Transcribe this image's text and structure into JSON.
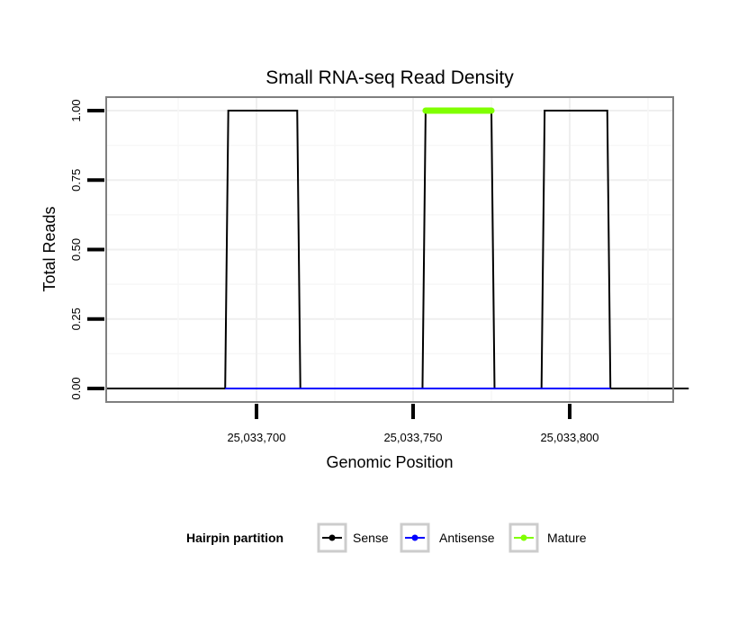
{
  "chart_data": {
    "type": "line",
    "title": "Small RNA-seq Read Density",
    "xlabel": "Genomic Position",
    "ylabel": "Total Reads",
    "xlim": [
      25033660,
      25033841
    ],
    "ylim": [
      -0.05,
      1.05
    ],
    "x_ticks": [
      25033700,
      25033750,
      25033800
    ],
    "x_tick_labels": [
      "25,033,700",
      "25,033,750",
      "25,033,800"
    ],
    "y_ticks": [
      0,
      0.25,
      0.5,
      0.75,
      1.0
    ],
    "y_tick_labels": [
      "0.00",
      "0.25",
      "0.50",
      "0.75",
      "1.00"
    ],
    "grid": true,
    "legend": {
      "title": "Hairpin partition",
      "placement": "bottom",
      "entries": [
        "Sense",
        "Antisense",
        "Mature"
      ]
    },
    "series": [
      {
        "name": "Sense",
        "color": "#000000",
        "x": [
          25033652,
          25033690,
          25033691,
          25033713,
          25033714,
          25033753,
          25033754,
          25033775,
          25033776,
          25033791,
          25033792,
          25033812,
          25033813,
          25033838
        ],
        "y": [
          0,
          0,
          1,
          1,
          0,
          0,
          1,
          1,
          0,
          0,
          1,
          1,
          0,
          0
        ]
      },
      {
        "name": "Antisense",
        "color": "#0000ff",
        "x": [
          25033690,
          25033813
        ],
        "y": [
          0,
          0
        ]
      },
      {
        "name": "Mature",
        "color": "#80ff00",
        "x": [
          25033754,
          25033775
        ],
        "y": [
          1,
          1
        ]
      }
    ]
  }
}
